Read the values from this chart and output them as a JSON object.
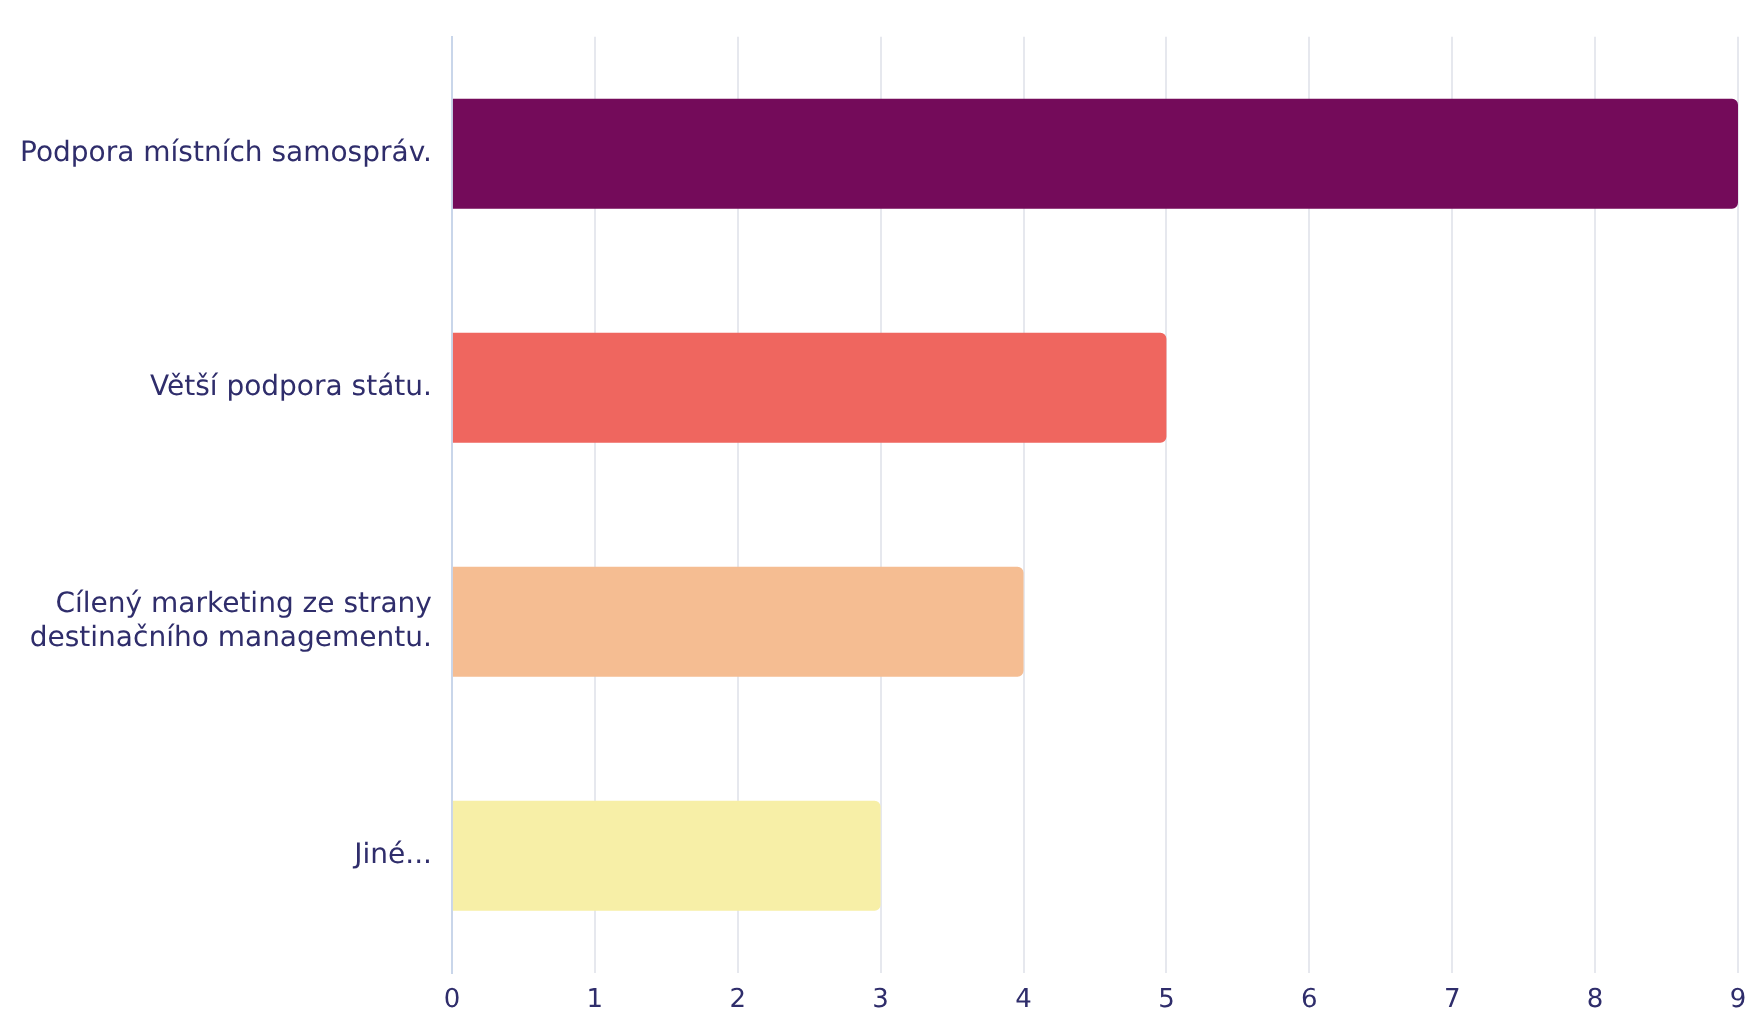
{
  "chart_data": {
    "type": "bar",
    "orientation": "horizontal",
    "categories": [
      "Podpora místních samospráv.",
      "Větší podpora státu.",
      "Cílený marketing ze strany destinačního managementu.",
      "Jiné..."
    ],
    "values": [
      9,
      5,
      4,
      3
    ],
    "colors": [
      "#740b5a",
      "#ef665f",
      "#f5bd92",
      "#f7efa7"
    ],
    "xlim": [
      0,
      9
    ],
    "xticks": [
      0,
      1,
      2,
      3,
      4,
      5,
      6,
      7,
      8,
      9
    ],
    "grid": "x",
    "legend": false
  }
}
